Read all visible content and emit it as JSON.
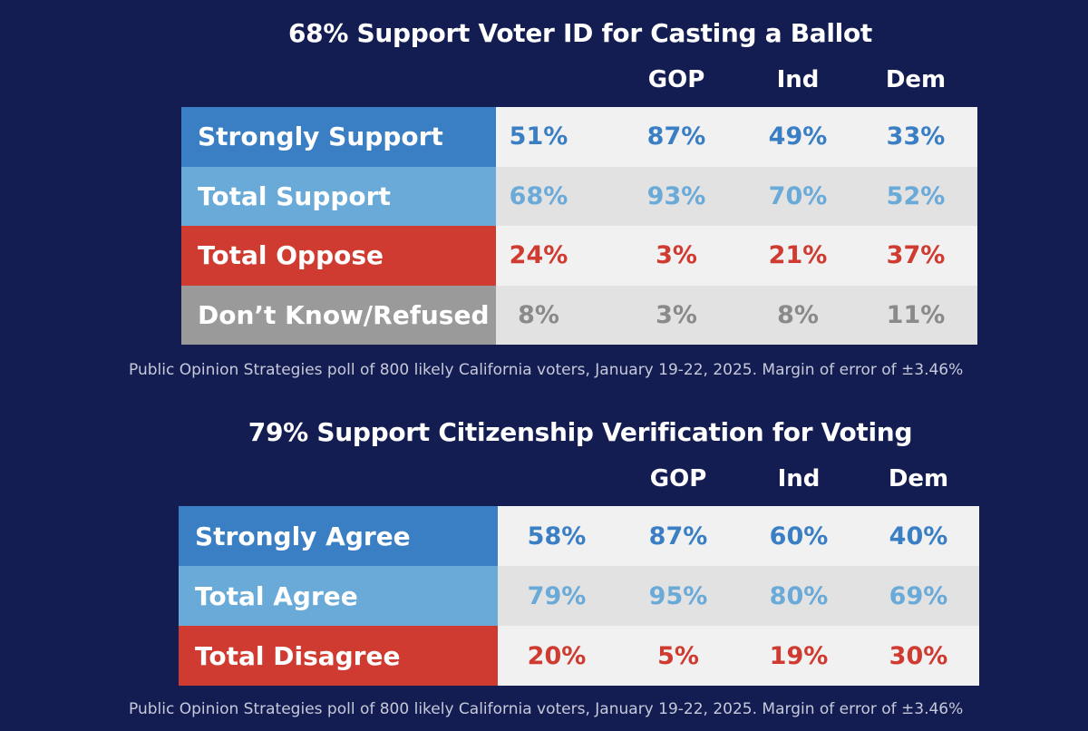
{
  "colors": {
    "background": "#141d52",
    "strong_support": "#3a7fc4",
    "total_support": "#6aaad8",
    "oppose": "#cf3b30",
    "dont_know": "#9a9a9a",
    "light_row": "#f1f1f1",
    "dark_row": "#e2e2e2"
  },
  "chart_data": [
    {
      "type": "table",
      "title": "68% Support Voter ID for Casting a Ballot",
      "columns": [
        "",
        "GOP",
        "Ind",
        "Dem"
      ],
      "rows": [
        {
          "label": "Strongly Support",
          "values": [
            "51%",
            "87%",
            "49%",
            "33%"
          ],
          "color": "#3a7fc4"
        },
        {
          "label": "Total Support",
          "values": [
            "68%",
            "93%",
            "70%",
            "52%"
          ],
          "color": "#6aaad8"
        },
        {
          "label": "Total Oppose",
          "values": [
            "24%",
            "3%",
            "21%",
            "37%"
          ],
          "color": "#cf3b30"
        },
        {
          "label": "Don’t Know/Refused",
          "values": [
            "8%",
            "3%",
            "8%",
            "11%"
          ],
          "color": "#9a9a9a"
        }
      ],
      "note": "Public Opinion Strategies poll of 800 likely California voters, January 19-22, 2025. Margin of error of ±3.46%"
    },
    {
      "type": "table",
      "title": "79% Support Citizenship Verification for Voting",
      "columns": [
        "",
        "GOP",
        "Ind",
        "Dem"
      ],
      "rows": [
        {
          "label": "Strongly Agree",
          "values": [
            "58%",
            "87%",
            "60%",
            "40%"
          ],
          "color": "#3a7fc4"
        },
        {
          "label": "Total Agree",
          "values": [
            "79%",
            "95%",
            "80%",
            "69%"
          ],
          "color": "#6aaad8"
        },
        {
          "label": "Total Disagree",
          "values": [
            "20%",
            "5%",
            "19%",
            "30%"
          ],
          "color": "#cf3b30"
        }
      ],
      "note": "Public Opinion Strategies poll of 800 likely California voters, January 19-22, 2025. Margin of error of ±3.46%"
    }
  ]
}
